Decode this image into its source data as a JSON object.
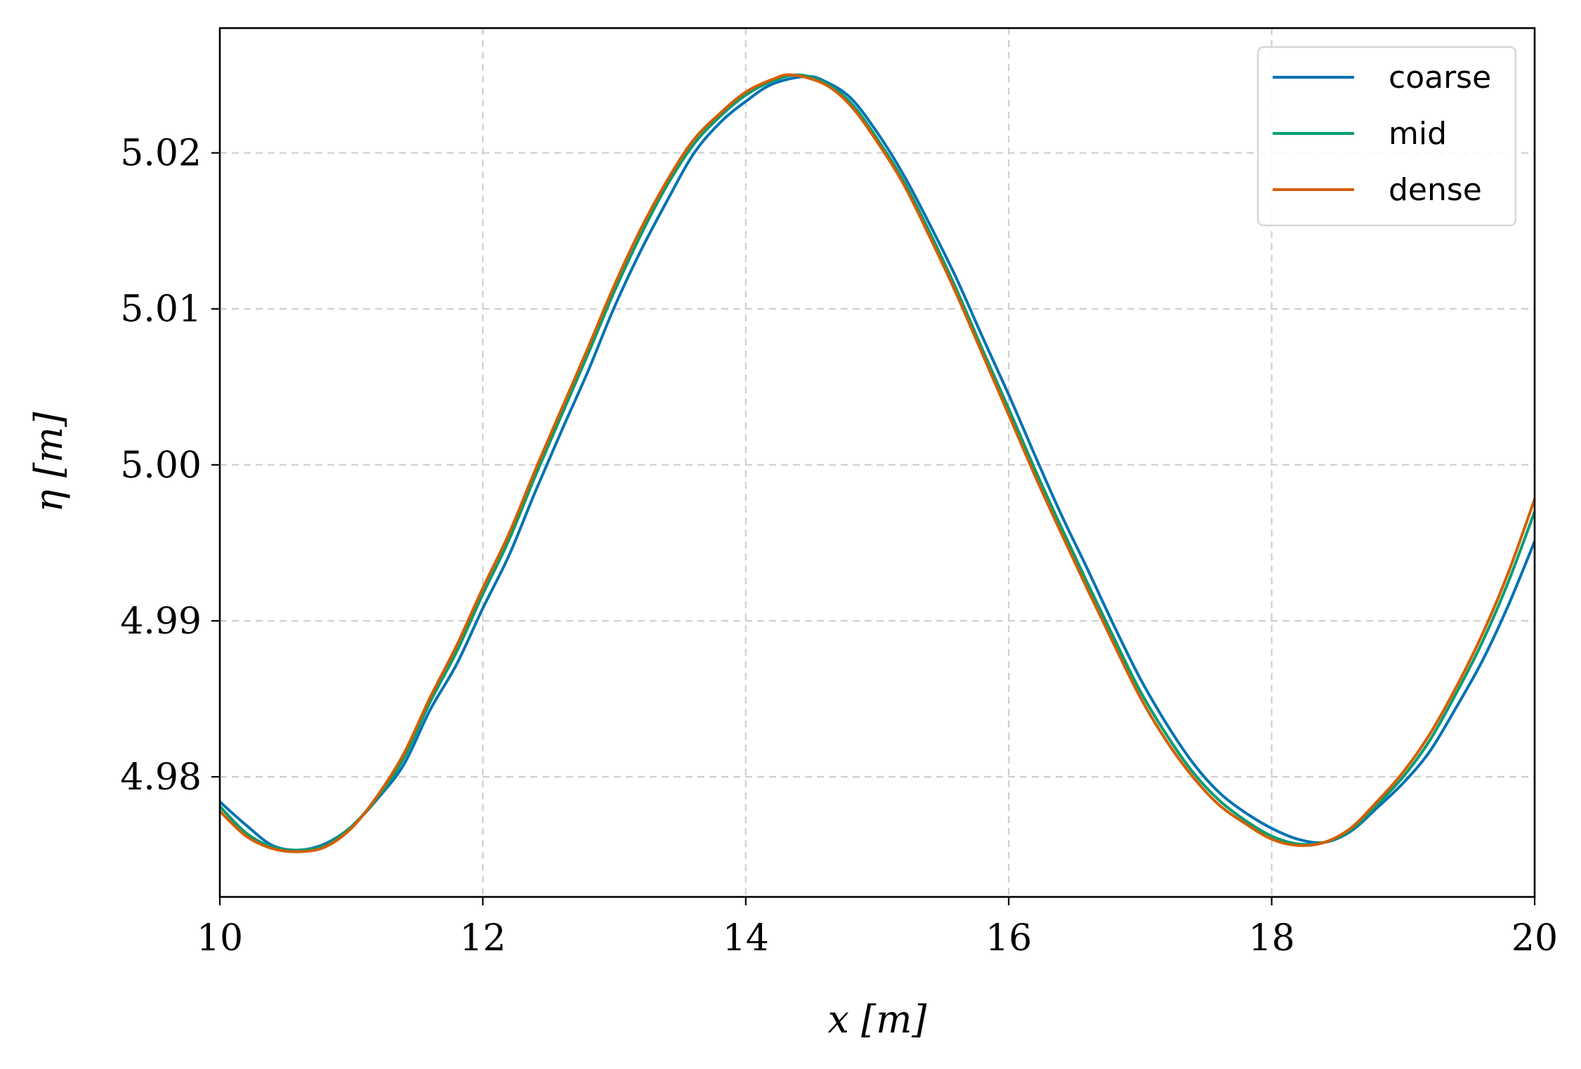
{
  "chart_data": {
    "type": "line",
    "title": "",
    "xlabel": "x [m]",
    "ylabel": "η [m]",
    "xlim": [
      10,
      20
    ],
    "ylim": [
      4.9723,
      5.028
    ],
    "xticks": [
      10,
      12,
      14,
      16,
      18,
      20
    ],
    "xtick_labels": [
      "10",
      "12",
      "14",
      "16",
      "18",
      "20"
    ],
    "yticks": [
      4.98,
      4.99,
      5.0,
      5.01,
      5.02
    ],
    "ytick_labels": [
      "4.98",
      "4.99",
      "5.00",
      "5.01",
      "5.02"
    ],
    "grid": true,
    "legend_position": "top-right",
    "series": [
      {
        "name": "coarse",
        "color": "#0072B2",
        "x": [
          10.0,
          10.2,
          10.4,
          10.6,
          10.8,
          11.0,
          11.2,
          11.4,
          11.6,
          11.8,
          12.0,
          12.2,
          12.4,
          12.6,
          12.8,
          13.0,
          13.2,
          13.4,
          13.6,
          13.8,
          14.0,
          14.2,
          14.45,
          14.6,
          14.8,
          15.0,
          15.2,
          15.4,
          15.6,
          15.8,
          16.0,
          16.2,
          16.4,
          16.6,
          16.8,
          17.0,
          17.2,
          17.4,
          17.6,
          17.8,
          18.0,
          18.2,
          18.4,
          18.6,
          18.8,
          19.0,
          19.2,
          19.4,
          19.6,
          19.8,
          20.0
        ],
        "y": [
          4.9784,
          4.9769,
          4.9756,
          4.9753,
          4.9757,
          4.9768,
          4.9786,
          4.9808,
          4.9843,
          4.9872,
          4.9908,
          4.9942,
          4.9983,
          5.0022,
          5.006,
          5.0101,
          5.0137,
          5.0169,
          5.0199,
          5.0219,
          5.0233,
          5.0244,
          5.0249,
          5.0246,
          5.0235,
          5.0213,
          5.0186,
          5.0154,
          5.012,
          5.0082,
          5.0045,
          5.0006,
          4.9968,
          4.9933,
          4.9897,
          4.9863,
          4.9834,
          4.9809,
          4.979,
          4.9777,
          4.9767,
          4.976,
          4.9758,
          4.9765,
          4.978,
          4.9796,
          4.9816,
          4.9844,
          4.9874,
          4.991,
          4.9951
        ]
      },
      {
        "name": "mid",
        "color": "#009E73",
        "x": [
          10.0,
          10.2,
          10.4,
          10.6,
          10.8,
          11.0,
          11.2,
          11.4,
          11.6,
          11.8,
          12.0,
          12.2,
          12.4,
          12.6,
          12.8,
          13.0,
          13.2,
          13.4,
          13.6,
          13.8,
          14.0,
          14.2,
          14.4,
          14.6,
          14.8,
          15.0,
          15.2,
          15.4,
          15.6,
          15.8,
          16.0,
          16.2,
          16.4,
          16.6,
          16.8,
          17.0,
          17.2,
          17.4,
          17.6,
          17.8,
          18.0,
          18.2,
          18.4,
          18.6,
          18.8,
          19.0,
          19.2,
          19.4,
          19.6,
          19.8,
          20.0
        ],
        "y": [
          4.9781,
          4.9764,
          4.9755,
          4.9753,
          4.9756,
          4.9768,
          4.9787,
          4.9812,
          4.9848,
          4.988,
          4.9917,
          4.9952,
          4.9993,
          5.0032,
          5.0071,
          5.0111,
          5.0147,
          5.0179,
          5.0205,
          5.0223,
          5.0237,
          5.0246,
          5.025,
          5.0245,
          5.0232,
          5.0209,
          5.0182,
          5.0149,
          5.0113,
          5.0074,
          5.0036,
          4.9997,
          4.996,
          4.9924,
          4.9889,
          4.9855,
          4.9827,
          4.9803,
          4.9785,
          4.9772,
          4.9762,
          4.9757,
          4.9758,
          4.9766,
          4.9782,
          4.98,
          4.9823,
          4.9853,
          4.9886,
          4.9925,
          4.997
        ]
      },
      {
        "name": "dense",
        "color": "#D55E00",
        "x": [
          10.0,
          10.2,
          10.4,
          10.6,
          10.8,
          11.0,
          11.2,
          11.4,
          11.6,
          11.8,
          12.0,
          12.2,
          12.4,
          12.6,
          12.8,
          13.0,
          13.2,
          13.4,
          13.6,
          13.8,
          14.0,
          14.2,
          14.35,
          14.6,
          14.8,
          15.0,
          15.2,
          15.4,
          15.6,
          15.8,
          16.0,
          16.2,
          16.4,
          16.6,
          16.8,
          17.0,
          17.2,
          17.4,
          17.6,
          17.8,
          18.0,
          18.2,
          18.4,
          18.6,
          18.8,
          19.0,
          19.2,
          19.4,
          19.6,
          19.8,
          20.0
        ],
        "y": [
          4.9778,
          4.9762,
          4.9754,
          4.9752,
          4.9755,
          4.9767,
          4.9788,
          4.9815,
          4.9851,
          4.9884,
          4.9921,
          4.9956,
          4.9997,
          5.0036,
          5.0075,
          5.0115,
          5.0151,
          5.0182,
          5.0208,
          5.0225,
          5.0239,
          5.0247,
          5.025,
          5.0244,
          5.023,
          5.0207,
          5.018,
          5.0146,
          5.011,
          5.0071,
          5.0032,
          4.9993,
          4.9956,
          4.992,
          4.9885,
          4.9851,
          4.9823,
          4.98,
          4.9782,
          4.977,
          4.976,
          4.9756,
          4.9758,
          4.9767,
          4.9784,
          4.9803,
          4.9827,
          4.9857,
          4.9891,
          4.9931,
          4.9978
        ]
      }
    ]
  }
}
